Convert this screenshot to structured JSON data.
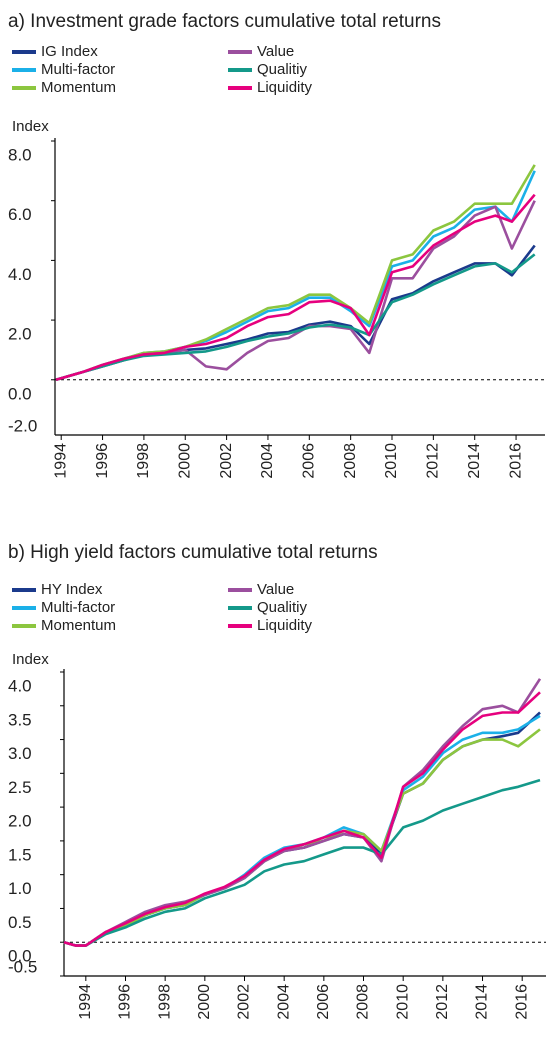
{
  "chart_data": [
    {
      "type": "line",
      "title": "a) Investment grade factors cumulative total returns",
      "y_label": "Index",
      "x": [
        1993.75,
        1995,
        1996,
        1997,
        1998,
        1999,
        2000,
        2001,
        2002,
        2003,
        2004,
        2005,
        2006,
        2007,
        2008,
        2008.9,
        2010,
        2011,
        2012,
        2013,
        2014,
        2015,
        2015.8,
        2016.9
      ],
      "series": [
        {
          "name": "IG Index",
          "color": "#1b3a8c",
          "values": [
            0,
            0.25,
            0.45,
            0.65,
            0.85,
            0.9,
            1.0,
            1.05,
            1.2,
            1.35,
            1.55,
            1.6,
            1.85,
            1.95,
            1.8,
            1.2,
            2.7,
            2.9,
            3.3,
            3.6,
            3.9,
            3.9,
            3.5,
            4.5
          ]
        },
        {
          "name": "Multi-factor",
          "color": "#1bb0e8",
          "values": [
            0,
            0.25,
            0.5,
            0.7,
            0.9,
            0.95,
            1.1,
            1.3,
            1.6,
            1.95,
            2.3,
            2.4,
            2.75,
            2.75,
            2.3,
            1.8,
            3.8,
            4.0,
            4.8,
            5.1,
            5.7,
            5.8,
            5.3,
            7.0
          ]
        },
        {
          "name": "Momentum",
          "color": "#8cc63f",
          "values": [
            0,
            0.25,
            0.5,
            0.7,
            0.9,
            0.95,
            1.1,
            1.35,
            1.7,
            2.05,
            2.4,
            2.5,
            2.85,
            2.85,
            2.4,
            1.9,
            4.0,
            4.2,
            5.0,
            5.3,
            5.9,
            5.9,
            5.9,
            7.2
          ]
        },
        {
          "name": "Value",
          "color": "#9b4f9e",
          "values": [
            0,
            0.25,
            0.45,
            0.65,
            0.85,
            0.9,
            1.0,
            0.45,
            0.35,
            0.9,
            1.3,
            1.4,
            1.8,
            1.8,
            1.7,
            0.9,
            3.4,
            3.4,
            4.4,
            4.8,
            5.5,
            5.8,
            4.4,
            6.0
          ]
        },
        {
          "name": "Qualitiy",
          "color": "#14998a",
          "values": [
            0,
            0.25,
            0.45,
            0.65,
            0.8,
            0.85,
            0.9,
            0.95,
            1.1,
            1.3,
            1.45,
            1.55,
            1.75,
            1.85,
            1.75,
            1.5,
            2.6,
            2.85,
            3.2,
            3.5,
            3.8,
            3.9,
            3.6,
            4.2
          ]
        },
        {
          "name": "Liquidity",
          "color": "#e6007e",
          "values": [
            0,
            0.25,
            0.5,
            0.7,
            0.85,
            0.9,
            1.1,
            1.2,
            1.4,
            1.8,
            2.1,
            2.2,
            2.6,
            2.65,
            2.4,
            1.5,
            3.6,
            3.8,
            4.5,
            4.9,
            5.3,
            5.5,
            5.3,
            6.2
          ]
        }
      ],
      "xlim": [
        1993.7,
        2017.4
      ],
      "xticks": [
        1994,
        1996,
        1998,
        2000,
        2002,
        2004,
        2006,
        2008,
        2010,
        2012,
        2014,
        2016
      ],
      "ylim": [
        -1.85,
        8.0
      ],
      "yticks": [
        {
          "value": -2,
          "label": "-2.0"
        },
        {
          "value": 0,
          "label": "0.0"
        },
        {
          "value": 2,
          "label": "2.0"
        },
        {
          "value": 4,
          "label": "4.0"
        },
        {
          "value": 6,
          "label": "6.0"
        },
        {
          "value": 8,
          "label": "8.0"
        }
      ],
      "reference_line": 0
    },
    {
      "type": "line",
      "title": "b) High yield factors cumulative total returns",
      "y_label": "Index",
      "x": [
        1992.9,
        1993.5,
        1994,
        1995,
        1996,
        1997,
        1998,
        1999,
        2000,
        2001,
        2002,
        2003,
        2004,
        2005,
        2006,
        2007,
        2008,
        2008.9,
        2010,
        2011,
        2012,
        2013,
        2014,
        2015,
        2015.8,
        2016.9
      ],
      "series": [
        {
          "name": "HY Index",
          "color": "#1b3a8c",
          "values": [
            0,
            -0.05,
            -0.05,
            0.15,
            0.25,
            0.4,
            0.5,
            0.55,
            0.7,
            0.8,
            0.95,
            1.2,
            1.35,
            1.4,
            1.5,
            1.6,
            1.55,
            1.3,
            2.2,
            2.35,
            2.7,
            2.9,
            3.0,
            3.05,
            3.1,
            3.4
          ]
        },
        {
          "name": "Multi-factor",
          "color": "#1bb0e8",
          "values": [
            0,
            -0.05,
            -0.05,
            0.15,
            0.25,
            0.4,
            0.5,
            0.55,
            0.7,
            0.8,
            1.0,
            1.25,
            1.4,
            1.45,
            1.55,
            1.7,
            1.6,
            1.35,
            2.25,
            2.45,
            2.8,
            3.0,
            3.1,
            3.1,
            3.15,
            3.35
          ]
        },
        {
          "name": "Momentum",
          "color": "#8cc63f",
          "values": [
            0,
            -0.05,
            -0.05,
            0.15,
            0.25,
            0.4,
            0.5,
            0.55,
            0.7,
            0.8,
            0.95,
            1.2,
            1.35,
            1.45,
            1.5,
            1.65,
            1.6,
            1.35,
            2.2,
            2.35,
            2.7,
            2.9,
            3.0,
            3.0,
            2.9,
            3.15
          ]
        },
        {
          "name": "Value",
          "color": "#9b4f9e",
          "values": [
            0,
            -0.05,
            -0.05,
            0.15,
            0.3,
            0.45,
            0.55,
            0.6,
            0.7,
            0.8,
            0.95,
            1.2,
            1.35,
            1.4,
            1.5,
            1.6,
            1.55,
            1.2,
            2.3,
            2.55,
            2.9,
            3.2,
            3.45,
            3.5,
            3.4,
            3.9
          ]
        },
        {
          "name": "Qualitiy",
          "color": "#14998a",
          "values": [
            0,
            -0.05,
            -0.05,
            0.12,
            0.22,
            0.35,
            0.45,
            0.5,
            0.65,
            0.75,
            0.85,
            1.05,
            1.15,
            1.2,
            1.3,
            1.4,
            1.4,
            1.3,
            1.7,
            1.8,
            1.95,
            2.05,
            2.15,
            2.25,
            2.3,
            2.4
          ]
        },
        {
          "name": "Liquidity",
          "color": "#e6007e",
          "values": [
            0,
            -0.05,
            -0.05,
            0.15,
            0.28,
            0.42,
            0.52,
            0.58,
            0.72,
            0.82,
            0.98,
            1.22,
            1.38,
            1.45,
            1.55,
            1.65,
            1.55,
            1.25,
            2.3,
            2.5,
            2.85,
            3.15,
            3.35,
            3.4,
            3.4,
            3.7
          ]
        }
      ],
      "xlim": [
        1992.9,
        2017.2
      ],
      "xticks": [
        1994,
        1996,
        1998,
        2000,
        2002,
        2004,
        2006,
        2008,
        2010,
        2012,
        2014,
        2016
      ],
      "ylim": [
        -0.5,
        4.0
      ],
      "yticks": [
        -0.5,
        {
          "value": 0,
          "label": "0.0"
        },
        0.5,
        {
          "value": 1,
          "label": "1.0"
        },
        1.5,
        {
          "value": 2,
          "label": "2.0"
        },
        2.5,
        {
          "value": 3,
          "label": "3.0"
        },
        3.5,
        {
          "value": 4,
          "label": "4.0"
        }
      ],
      "reference_line": 0
    }
  ]
}
